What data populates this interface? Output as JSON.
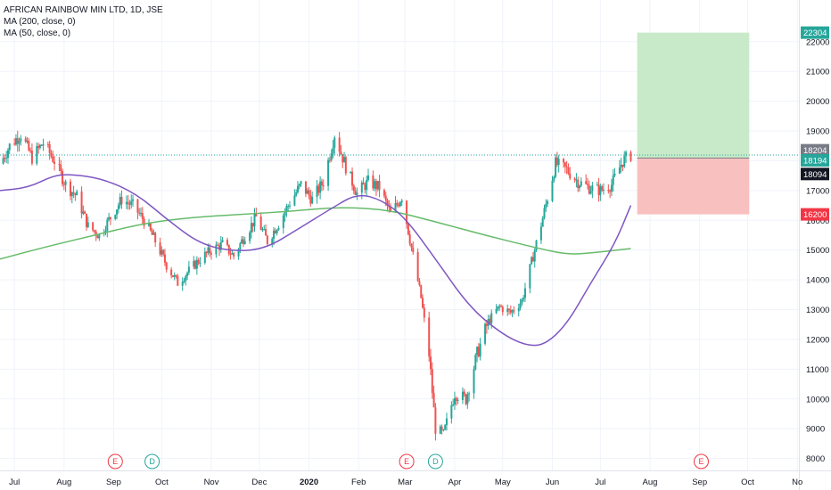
{
  "legend": {
    "symbol": "AFRICAN RAINBOW MIN LTD, 1D, JSE",
    "ma200": "MA (200, close, 0)",
    "ma50": "MA (50, close, 0)"
  },
  "colors": {
    "up": "#26a69a",
    "down": "#ef5350",
    "ma200": "#66bb6a",
    "ma50": "#7e57c2",
    "grid": "#f0f3fa",
    "profit_zone": "#c8eac8",
    "loss_zone": "#f9c0c0",
    "target_tag": "#26a69a",
    "stop_tag": "#f23645",
    "current_tag": "#26a69a",
    "entry_tag": "#131722",
    "gray_tag": "#787b86"
  },
  "price_tags": [
    {
      "value": 22304,
      "label": "22304",
      "kind": "target"
    },
    {
      "value": 18204,
      "label": "18204",
      "kind": "gray"
    },
    {
      "value": 18194,
      "label": "18194",
      "kind": "current"
    },
    {
      "value": 18094,
      "label": "18094",
      "kind": "entry"
    },
    {
      "value": 16200,
      "label": "16200",
      "kind": "stop"
    }
  ],
  "events": [
    {
      "letter": "E",
      "date": "2019-09-02",
      "kind": "earnings"
    },
    {
      "letter": "D",
      "date": "2019-09-25",
      "kind": "dividend"
    },
    {
      "letter": "E",
      "date": "2020-03-02",
      "kind": "earnings"
    },
    {
      "letter": "D",
      "date": "2020-03-20",
      "kind": "dividend"
    },
    {
      "letter": "E",
      "date": "2020-09-02",
      "kind": "earnings"
    }
  ],
  "chart_data": {
    "type": "candlestick",
    "x_range": [
      "2019-06-22",
      "2020-11-02"
    ],
    "y_range": [
      7600,
      23400
    ],
    "y_ticks": [
      8000,
      9000,
      10000,
      11000,
      12000,
      13000,
      14000,
      15000,
      16000,
      17000,
      18000,
      19000,
      20000,
      21000,
      22000
    ],
    "x_ticks": [
      {
        "label": "Jul",
        "date": "2019-07-01"
      },
      {
        "label": "Aug",
        "date": "2019-08-01"
      },
      {
        "label": "Sep",
        "date": "2019-09-01"
      },
      {
        "label": "Oct",
        "date": "2019-10-01"
      },
      {
        "label": "Nov",
        "date": "2019-11-01"
      },
      {
        "label": "Dec",
        "date": "2019-12-01"
      },
      {
        "label": "2020",
        "date": "2020-01-01"
      },
      {
        "label": "Feb",
        "date": "2020-02-01"
      },
      {
        "label": "Mar",
        "date": "2020-03-01"
      },
      {
        "label": "Apr",
        "date": "2020-04-01"
      },
      {
        "label": "May",
        "date": "2020-05-01"
      },
      {
        "label": "Jun",
        "date": "2020-06-01"
      },
      {
        "label": "Jul",
        "date": "2020-07-01"
      },
      {
        "label": "Aug",
        "date": "2020-08-01"
      },
      {
        "label": "Sep",
        "date": "2020-09-01"
      },
      {
        "label": "Oct",
        "date": "2020-10-01"
      },
      {
        "label": "No",
        "date": "2020-11-01"
      }
    ],
    "price_path": [
      [
        "2019-06-22",
        17900
      ],
      [
        "2019-06-28",
        18500
      ],
      [
        "2019-07-05",
        18900
      ],
      [
        "2019-07-12",
        18100
      ],
      [
        "2019-07-19",
        18600
      ],
      [
        "2019-07-26",
        18000
      ],
      [
        "2019-08-02",
        17200
      ],
      [
        "2019-08-09",
        16800
      ],
      [
        "2019-08-16",
        15800
      ],
      [
        "2019-08-23",
        15500
      ],
      [
        "2019-08-30",
        16100
      ],
      [
        "2019-09-06",
        16700
      ],
      [
        "2019-09-13",
        16500
      ],
      [
        "2019-09-20",
        16000
      ],
      [
        "2019-09-27",
        15300
      ],
      [
        "2019-10-04",
        14500
      ],
      [
        "2019-10-11",
        13900
      ],
      [
        "2019-10-18",
        14300
      ],
      [
        "2019-10-25",
        14700
      ],
      [
        "2019-11-01",
        15000
      ],
      [
        "2019-11-08",
        15200
      ],
      [
        "2019-11-15",
        14800
      ],
      [
        "2019-11-22",
        15500
      ],
      [
        "2019-11-29",
        16100
      ],
      [
        "2019-12-06",
        15300
      ],
      [
        "2019-12-13",
        15900
      ],
      [
        "2019-12-20",
        16600
      ],
      [
        "2019-12-27",
        17200
      ],
      [
        "2020-01-03",
        16700
      ],
      [
        "2020-01-10",
        17300
      ],
      [
        "2020-01-17",
        18900
      ],
      [
        "2020-01-24",
        17800
      ],
      [
        "2020-01-31",
        16900
      ],
      [
        "2020-02-07",
        17300
      ],
      [
        "2020-02-14",
        17100
      ],
      [
        "2020-02-21",
        16200
      ],
      [
        "2020-02-28",
        16800
      ],
      [
        "2020-03-06",
        14800
      ],
      [
        "2020-03-11",
        13400
      ],
      [
        "2020-03-16",
        11500
      ],
      [
        "2020-03-20",
        9000
      ],
      [
        "2020-03-25",
        8800
      ],
      [
        "2020-04-01",
        10200
      ],
      [
        "2020-04-08",
        10000
      ],
      [
        "2020-04-15",
        11500
      ],
      [
        "2020-04-22",
        12600
      ],
      [
        "2020-04-29",
        13100
      ],
      [
        "2020-05-06",
        12900
      ],
      [
        "2020-05-13",
        13300
      ],
      [
        "2020-05-20",
        14800
      ],
      [
        "2020-05-27",
        16300
      ],
      [
        "2020-06-03",
        17900
      ],
      [
        "2020-06-10",
        17700
      ],
      [
        "2020-06-17",
        17300
      ],
      [
        "2020-06-24",
        17100
      ],
      [
        "2020-07-01",
        17000
      ],
      [
        "2020-07-08",
        17200
      ],
      [
        "2020-07-15",
        18000
      ],
      [
        "2020-07-20",
        18194
      ]
    ],
    "series": [
      {
        "name": "MA (200, close, 0)",
        "points": [
          [
            "2019-06-22",
            14700
          ],
          [
            "2019-07-20",
            15100
          ],
          [
            "2019-08-20",
            15500
          ],
          [
            "2019-09-20",
            15900
          ],
          [
            "2019-10-20",
            16100
          ],
          [
            "2019-11-20",
            16200
          ],
          [
            "2019-12-20",
            16300
          ],
          [
            "2020-01-20",
            16450
          ],
          [
            "2020-02-20",
            16350
          ],
          [
            "2020-03-20",
            15950
          ],
          [
            "2020-04-20",
            15500
          ],
          [
            "2020-05-20",
            15100
          ],
          [
            "2020-06-10",
            14850
          ],
          [
            "2020-06-25",
            14900
          ],
          [
            "2020-07-20",
            15050
          ]
        ]
      },
      {
        "name": "MA (50, close, 0)",
        "points": [
          [
            "2019-06-22",
            17000
          ],
          [
            "2019-07-10",
            17100
          ],
          [
            "2019-07-25",
            17500
          ],
          [
            "2019-08-05",
            17550
          ],
          [
            "2019-08-25",
            17400
          ],
          [
            "2019-09-15",
            16900
          ],
          [
            "2019-10-05",
            16000
          ],
          [
            "2019-10-25",
            15200
          ],
          [
            "2019-11-15",
            14950
          ],
          [
            "2019-12-05",
            15050
          ],
          [
            "2019-12-25",
            15700
          ],
          [
            "2020-01-15",
            16400
          ],
          [
            "2020-01-31",
            16900
          ],
          [
            "2020-02-15",
            16700
          ],
          [
            "2020-03-01",
            16100
          ],
          [
            "2020-03-20",
            14700
          ],
          [
            "2020-04-10",
            13100
          ],
          [
            "2020-04-30",
            12200
          ],
          [
            "2020-05-15",
            11800
          ],
          [
            "2020-05-27",
            11800
          ],
          [
            "2020-06-10",
            12500
          ],
          [
            "2020-06-25",
            13900
          ],
          [
            "2020-07-10",
            15200
          ],
          [
            "2020-07-20",
            16500
          ]
        ]
      }
    ],
    "position": {
      "start": "2020-07-24",
      "end": "2020-10-02",
      "entry": 18094,
      "target": 22304,
      "stop": 16200
    }
  }
}
